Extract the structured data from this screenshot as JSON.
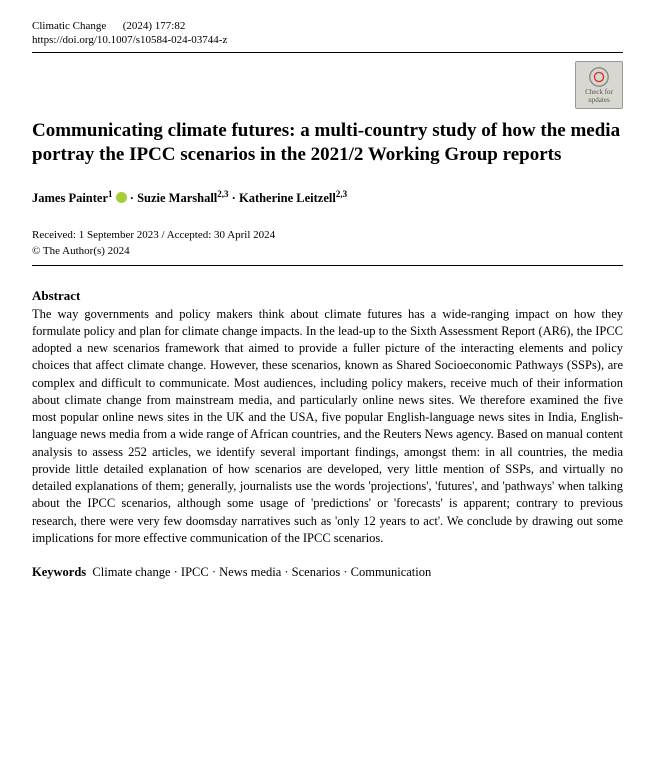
{
  "header": {
    "journal": "Climatic Change",
    "issue": "(2024) 177:82",
    "doi": "https://doi.org/10.1007/s10584-024-03744-z"
  },
  "badge": {
    "line1": "Check for",
    "line2": "updates"
  },
  "title": "Communicating climate futures: a multi-country study of how the media portray the IPCC scenarios in the 2021/2 Working Group reports",
  "authors": [
    {
      "name": "James Painter",
      "aff": "1",
      "orcid": true
    },
    {
      "name": "Suzie Marshall",
      "aff": "2,3",
      "orcid": false
    },
    {
      "name": "Katherine Leitzell",
      "aff": "2,3",
      "orcid": false
    }
  ],
  "dates": "Received: 1 September 2023 / Accepted: 30 April 2024",
  "copyright": "© The Author(s) 2024",
  "abstract": {
    "heading": "Abstract",
    "body": "The way governments and policy makers think about climate futures has a wide-ranging impact on how they formulate policy and plan for climate change impacts. In the lead-up to the Sixth Assessment Report (AR6), the IPCC adopted a new scenarios framework that aimed to provide a fuller picture of the interacting elements and policy choices that affect climate change. However, these scenarios, known as Shared Socioeconomic Pathways (SSPs), are complex and difficult to communicate. Most audiences, including policy makers, receive much of their information about climate change from mainstream media, and particularly online news sites. We therefore examined the five most popular online news sites in the UK and the USA, five popular English-language news sites in India, English-language news media from a wide range of African countries, and the Reuters News agency. Based on manual content analysis to assess 252 articles, we identify several important findings, amongst them: in all countries, the media provide little detailed explanation of how scenarios are developed, very little mention of SSPs, and virtually no detailed explanations of them; generally, journalists use the words 'projections', 'futures', and 'pathways' when talking about the IPCC scenarios, although some usage of 'predictions' or 'forecasts' is apparent; contrary to previous research, there were very few doomsday narratives such as 'only 12 years to act'. We conclude by drawing out some implications for more effective communication of the IPCC scenarios."
  },
  "keywords": {
    "label": "Keywords",
    "list": "Climate change · IPCC · News media · Scenarios · Communication"
  }
}
